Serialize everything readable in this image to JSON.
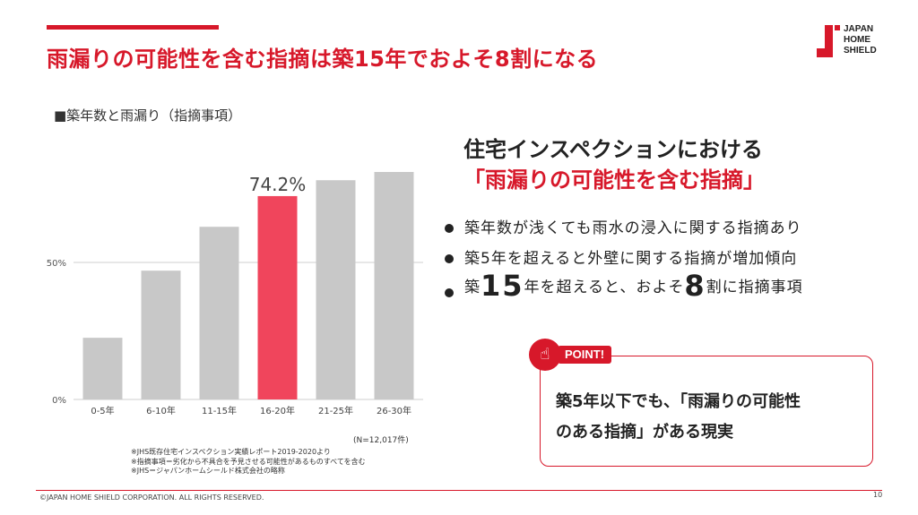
{
  "slide": {
    "title": "雨漏りの可能性を含む指摘は築15年でおよそ8割になる",
    "accent_color": "#d7182a"
  },
  "logo": {
    "line1": "JAPAN",
    "line2": "HOME",
    "line3": "SHIELD"
  },
  "chart_data": {
    "type": "bar",
    "title": "■築年数と雨漏り（指摘事項）",
    "categories": [
      "0-5年",
      "6-10年",
      "11-15年",
      "16-20年",
      "21-25年",
      "26-30年"
    ],
    "values": [
      22.5,
      47,
      63,
      74.2,
      80,
      83
    ],
    "highlight_index": 3,
    "highlight_label": "74.2%",
    "yticks": [
      {
        "value": 0,
        "label": "0%"
      },
      {
        "value": 50,
        "label": "50%"
      }
    ],
    "ylim": [
      0,
      100
    ],
    "bar_color": "#c8c8c8",
    "highlight_color": "#f0455c",
    "grid": true
  },
  "sample_note": "(N=12,017件)",
  "footnotes": [
    "※JHS既存住宅インスペクション実績レポート2019-2020より",
    "※指摘事項＝劣化から不具合を予見させる可能性があるものすべてを含む",
    "※JHS＝ジャパンホームシールド株式会社の略称"
  ],
  "heading": {
    "line1": "住宅インスペクションにおける",
    "line2": "「雨漏りの可能性を含む指摘」"
  },
  "bullets": {
    "b1": "築年数が浅くても雨水の浸入に関する指摘あり",
    "b2": "築5年を超えると外壁に関する指摘が増加傾向",
    "b3": {
      "p1": "築",
      "n1": "15",
      "p2": "年を超えると、およそ",
      "n2": "8",
      "p3": "割に指摘事項"
    }
  },
  "point": {
    "tag": "POINT!",
    "icon": "hand-pointing-icon",
    "line1": "築5年以下でも、「雨漏りの可能性",
    "line2": "のある指摘」がある現実"
  },
  "footer": {
    "copyright": "©JAPAN HOME SHIELD CORPORATION.  ALL RIGHTS RESERVED.",
    "page": "10"
  }
}
